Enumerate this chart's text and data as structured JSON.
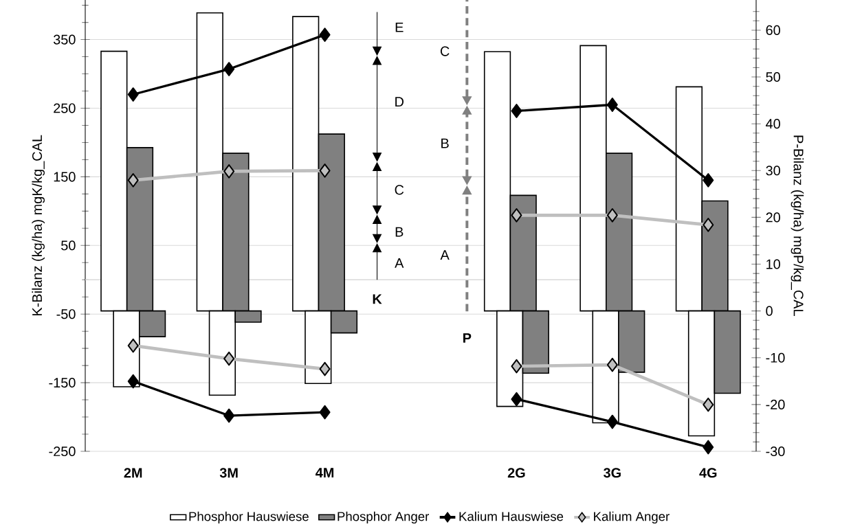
{
  "chart_data": {
    "type": "bar",
    "categories": [
      "2M",
      "3M",
      "4M",
      null,
      "2G",
      "3G",
      "4G"
    ],
    "ylabel": "K-Bilanz (kg/ha) mgK/kg_CAL",
    "y2label": "P-Bilanz (kg/ha) mgP/kg_CAL",
    "ylim": [
      -250,
      408
    ],
    "yticks": [
      -250,
      {
        "value": -225,
        "label": null
      },
      {
        "value": -200,
        "label": null
      },
      {
        "value": -175,
        "label": null
      },
      -150,
      {
        "value": -125,
        "label": null
      },
      {
        "value": -100,
        "label": null
      },
      {
        "value": -75,
        "label": null
      },
      -50,
      {
        "value": -25,
        "label": null
      },
      {
        "value": 0,
        "label": null
      },
      {
        "value": 25,
        "label": null
      },
      50,
      {
        "value": 75,
        "label": null
      },
      {
        "value": 100,
        "label": null
      },
      {
        "value": 125,
        "label": null
      },
      150,
      {
        "value": 175,
        "label": null
      },
      {
        "value": 200,
        "label": null
      },
      {
        "value": 225,
        "label": null
      },
      250,
      {
        "value": 275,
        "label": null
      },
      {
        "value": 300,
        "label": null
      },
      {
        "value": 325,
        "label": null
      },
      350,
      {
        "value": 375,
        "label": null
      },
      {
        "value": 400,
        "label": null
      }
    ],
    "y2lim": [
      -30,
      66.5
    ],
    "y2ticks": [
      -30,
      {
        "value": -28,
        "label": null
      },
      {
        "value": -26,
        "label": null
      },
      {
        "value": -24,
        "label": null
      },
      {
        "value": -22,
        "label": null
      },
      -20,
      {
        "value": -18,
        "label": null
      },
      {
        "value": -16,
        "label": null
      },
      {
        "value": -14,
        "label": null
      },
      {
        "value": -12,
        "label": null
      },
      -10,
      {
        "value": -8,
        "label": null
      },
      {
        "value": -6,
        "label": null
      },
      {
        "value": -4,
        "label": null
      },
      {
        "value": -2,
        "label": null
      },
      0,
      {
        "value": 2,
        "label": null
      },
      {
        "value": 4,
        "label": null
      },
      {
        "value": 6,
        "label": null
      },
      {
        "value": 8,
        "label": null
      },
      10,
      {
        "value": 12,
        "label": null
      },
      {
        "value": 14,
        "label": null
      },
      {
        "value": 16,
        "label": null
      },
      {
        "value": 18,
        "label": null
      },
      20,
      {
        "value": 22,
        "label": null
      },
      {
        "value": 24,
        "label": null
      },
      {
        "value": 26,
        "label": null
      },
      {
        "value": 28,
        "label": null
      },
      30,
      {
        "value": 32,
        "label": null
      },
      {
        "value": 34,
        "label": null
      },
      {
        "value": 36,
        "label": null
      },
      {
        "value": 38,
        "label": null
      },
      40,
      {
        "value": 42,
        "label": null
      },
      {
        "value": 44,
        "label": null
      },
      {
        "value": 46,
        "label": null
      },
      {
        "value": 48,
        "label": null
      },
      50,
      {
        "value": 52,
        "label": null
      },
      {
        "value": 54,
        "label": null
      },
      {
        "value": 56,
        "label": null
      },
      {
        "value": 58,
        "label": null
      },
      60,
      {
        "value": 62,
        "label": null
      },
      {
        "value": 64,
        "label": null
      }
    ],
    "grid": "y",
    "legend": "bottom",
    "marker": "diamond",
    "ref_lines": [
      {
        "axis": "y",
        "value": 0,
        "color": "#d9d9d9"
      }
    ],
    "annotations": [
      "A",
      "B",
      "C",
      "D",
      "E",
      "K",
      "A",
      "B",
      "C",
      "P"
    ],
    "series": [
      {
        "name": "Phosphor Hauswiese",
        "axis": "y2",
        "color": "#ffffff",
        "values": [
          55.5,
          63.7,
          62.9,
          null,
          55.4,
          56.7,
          47.9
        ]
      },
      {
        "name": "Phosphor Anger",
        "axis": "y2",
        "color": "#808080",
        "values": [
          34.9,
          33.7,
          37.8,
          null,
          24.7,
          33.7,
          23.5
        ]
      },
      {
        "axis": "y2",
        "color": "#ffffff",
        "values": [
          -16.2,
          -18.0,
          -15.5,
          null,
          -20.4,
          -23.9,
          -26.7
        ]
      },
      {
        "axis": "y2",
        "color": "#808080",
        "values": [
          -5.5,
          -2.4,
          -4.7,
          null,
          -13.3,
          -13.1,
          -17.6
        ]
      },
      {
        "name": "Kalium Hauswiese",
        "type": "line",
        "axis": "y",
        "color": "#000000",
        "values": [
          270,
          307,
          357,
          null,
          246,
          255,
          145
        ]
      },
      {
        "type": "line",
        "axis": "y",
        "color": "#000000",
        "values": [
          -148,
          -198,
          -193,
          null,
          -174,
          -207,
          -244
        ]
      },
      {
        "name": "Kalium Anger",
        "type": "line",
        "axis": "y",
        "color": "#bfbfbf",
        "values": [
          145,
          158,
          159,
          null,
          94,
          94,
          80
        ]
      },
      {
        "type": "line",
        "axis": "y",
        "color": "#bfbfbf",
        "values": [
          -96,
          -115,
          -130,
          null,
          -126,
          -124,
          -182
        ]
      }
    ]
  }
}
